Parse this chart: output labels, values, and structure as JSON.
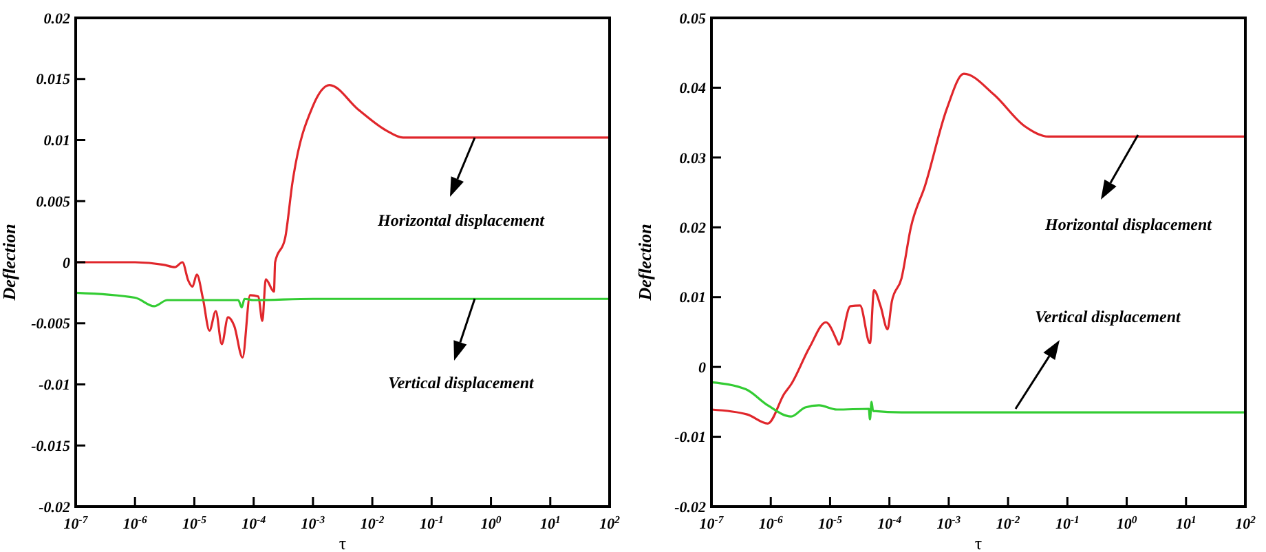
{
  "chart_data": [
    {
      "type": "line",
      "xlabel": "τ",
      "ylabel": "Deflection",
      "log": "x",
      "xlim": [
        1e-07,
        100
      ],
      "ylim": [
        -0.02,
        0.02
      ],
      "xticks": [
        {
          "value": 1e-07,
          "label": "10$^{-7}$"
        },
        {
          "value": 1e-06,
          "label": "10$^{-6}$"
        },
        {
          "value": 1e-05,
          "label": "10$^{-5}$"
        },
        {
          "value": 0.0001,
          "label": "10$^{-4}$"
        },
        {
          "value": 0.001,
          "label": "10$^{-3}$"
        },
        {
          "value": 0.01,
          "label": "10$^{-2}$"
        },
        {
          "value": 0.1,
          "label": "10$^{-1}$"
        },
        {
          "value": 1,
          "label": "10$^{0}$"
        },
        {
          "value": 10,
          "label": "10$^{1}$"
        },
        {
          "value": 100,
          "label": "10$^{2}$"
        }
      ],
      "yticks": [
        -0.02,
        -0.015,
        -0.01,
        -0.005,
        0,
        0.005,
        0.01,
        0.015,
        0.02
      ],
      "grid": false,
      "legend": false,
      "annotations": [
        "Horizontal displacement",
        "Vertical displacement"
      ],
      "series": [
        {
          "color": "#e0262b",
          "x": [
            1e-07,
            1e-06,
            3e-06,
            4.7e-06,
            6.3e-06,
            7.9e-06,
            9.3e-06,
            1.1e-05,
            1.4e-05,
            1.8e-05,
            2.3e-05,
            2.9e-05,
            3.7e-05,
            4.7e-05,
            6.5e-05,
            8.7e-05,
            0.00012,
            0.00014,
            0.00016,
            0.00022,
            0.00023,
            0.00034,
            0.00045,
            0.001,
            0.0019,
            0.0058,
            0.017,
            0.033,
            100
          ],
          "values": [
            0,
            0,
            -0.0002,
            -0.0004,
            0,
            -0.0015,
            -0.002,
            -0.001,
            -0.003,
            -0.0056,
            -0.004,
            -0.0067,
            -0.0045,
            -0.0052,
            -0.0078,
            -0.0027,
            -0.0028,
            -0.0048,
            -0.0014,
            -0.0024,
            0,
            0.002,
            0.0065,
            0.0128,
            0.0145,
            0.0125,
            0.0108,
            0.0102,
            0.0102
          ]
        },
        {
          "color": "#33cc33",
          "x": [
            1e-07,
            1e-06,
            2.1e-06,
            3.5e-06,
            1e-05,
            5.5e-05,
            6.3e-05,
            7e-05,
            0.0001,
            0.001,
            100
          ],
          "values": [
            -0.0025,
            -0.0029,
            -0.0036,
            -0.0031,
            -0.0031,
            -0.0031,
            -0.0037,
            -0.003,
            -0.0031,
            -0.003,
            -0.003
          ]
        }
      ]
    },
    {
      "type": "line",
      "xlabel": "τ",
      "ylabel": "Deflection",
      "log": "x",
      "xlim": [
        1e-07,
        100
      ],
      "ylim": [
        -0.02,
        0.05
      ],
      "xticks": [
        {
          "value": 1e-07,
          "label": "10$^{-7}$"
        },
        {
          "value": 1e-06,
          "label": "10$^{-6}$"
        },
        {
          "value": 1e-05,
          "label": "10$^{-5}$"
        },
        {
          "value": 0.0001,
          "label": "10$^{-4}$"
        },
        {
          "value": 0.001,
          "label": "10$^{-3}$"
        },
        {
          "value": 0.01,
          "label": "10$^{-2}$"
        },
        {
          "value": 0.1,
          "label": "10$^{-1}$"
        },
        {
          "value": 1,
          "label": "10$^{0}$"
        },
        {
          "value": 10,
          "label": "10$^{1}$"
        },
        {
          "value": 100,
          "label": "10$^{2}$"
        }
      ],
      "yticks": [
        -0.02,
        -0.01,
        0,
        0.01,
        0.02,
        0.03,
        0.04,
        0.05
      ],
      "grid": false,
      "legend": false,
      "annotations": [
        "Horizontal displacement",
        "Vertical displacement"
      ],
      "series": [
        {
          "color": "#e0262b",
          "x": [
            1e-07,
            4e-07,
            8.9e-07,
            1.7e-06,
            2.2e-06,
            4.5e-06,
            8.5e-06,
            1.3e-05,
            1.4e-05,
            2.2e-05,
            3.2e-05,
            4.7e-05,
            5.5e-05,
            7.1e-05,
            9.3e-05,
            0.00011,
            0.00016,
            0.00023,
            0.0004,
            0.00093,
            0.0018,
            0.0058,
            0.019,
            0.048,
            100
          ],
          "values": [
            -0.0061,
            -0.0068,
            -0.0081,
            -0.0038,
            -0.0025,
            0.0028,
            0.0064,
            0.0038,
            0.0032,
            0.0087,
            0.0088,
            0.0034,
            0.011,
            0.0087,
            0.0054,
            0.0094,
            0.0127,
            0.02,
            0.026,
            0.037,
            0.042,
            0.039,
            0.0345,
            0.033,
            0.033
          ]
        },
        {
          "color": "#33cc33",
          "x": [
            1e-07,
            3.8e-07,
            8.9e-07,
            2.2e-06,
            3.8e-06,
            6.5e-06,
            1.3e-05,
            4.5e-05,
            4.7e-05,
            5e-05,
            5.3e-05,
            0.00016,
            100
          ],
          "values": [
            -0.0022,
            -0.0032,
            -0.0055,
            -0.0071,
            -0.0058,
            -0.0055,
            -0.0061,
            -0.006,
            -0.0075,
            -0.005,
            -0.0063,
            -0.0065,
            -0.0065
          ]
        }
      ]
    }
  ]
}
